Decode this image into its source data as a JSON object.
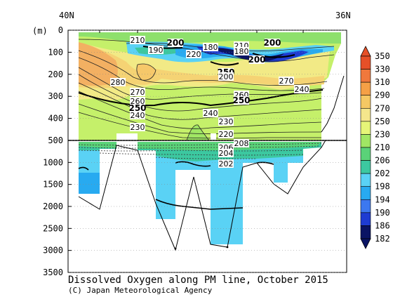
{
  "chart_data": {
    "type": "contour",
    "title": "Dissolved Oxygen along PM line, October 2015",
    "credit": "(C) Japan Meteorological Agency",
    "ylabel": "(m)",
    "x_labels": {
      "left": "40N",
      "right": "36N"
    },
    "ylim": [
      3500,
      0
    ],
    "upper_panel": {
      "depth_range": [
        0,
        500
      ],
      "ticks": [
        0,
        100,
        200,
        300,
        400,
        500
      ]
    },
    "lower_panel": {
      "depth_range": [
        500,
        3500
      ],
      "ticks": [
        1000,
        1500,
        2000,
        2500,
        3000,
        3500
      ]
    },
    "colorbar": {
      "levels": [
        182,
        186,
        190,
        194,
        198,
        202,
        206,
        210,
        230,
        250,
        270,
        290,
        310,
        330,
        350
      ],
      "colors": [
        "#0a1464",
        "#1e3cd2",
        "#3c78f0",
        "#28aaf0",
        "#5ad2f5",
        "#3cc8a0",
        "#5ad278",
        "#a0e664",
        "#e6f578",
        "#f5e68c",
        "#f5c864",
        "#f5a046",
        "#f0783c",
        "#e65028"
      ]
    },
    "contour_labels": [
      {
        "value": "210"
      },
      {
        "value": "200",
        "bold": true
      },
      {
        "value": "200",
        "bold": true
      },
      {
        "value": "190"
      },
      {
        "value": "180"
      },
      {
        "value": "220"
      },
      {
        "value": "210"
      },
      {
        "value": "180"
      },
      {
        "value": "200",
        "bold": true
      },
      {
        "value": "250",
        "bold": true
      },
      {
        "value": "200"
      },
      {
        "value": "280"
      },
      {
        "value": "270"
      },
      {
        "value": "240"
      },
      {
        "value": "270"
      },
      {
        "value": "260"
      },
      {
        "value": "250",
        "bold": true
      },
      {
        "value": "260"
      },
      {
        "value": "250",
        "bold": true
      },
      {
        "value": "240"
      },
      {
        "value": "240"
      },
      {
        "value": "230"
      },
      {
        "value": "230"
      },
      {
        "value": "220"
      },
      {
        "value": "208"
      },
      {
        "value": "206"
      },
      {
        "value": "204"
      },
      {
        "value": "202"
      }
    ]
  }
}
